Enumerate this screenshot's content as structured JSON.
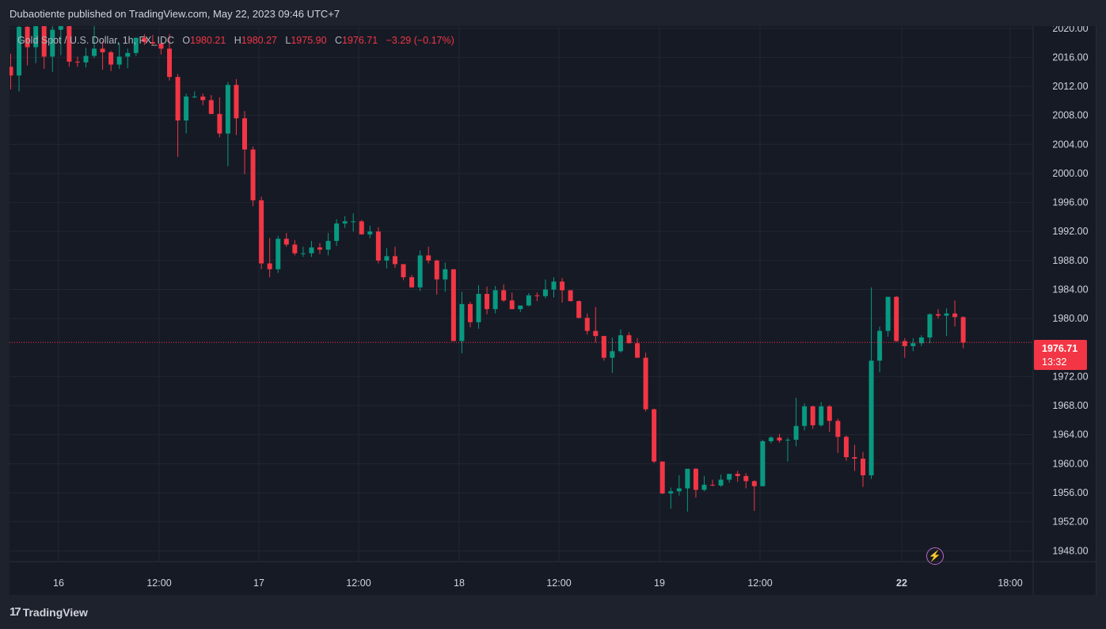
{
  "header": {
    "publish_text": "Dubaotiente published on TradingView.com, May 22, 2023 09:46 UTC+7"
  },
  "legend": {
    "symbol": "Gold Spot / U.S. Dollar, 1h, FX_IDC",
    "open_label": "O",
    "open_value": "1980.21",
    "high_label": "H",
    "high_value": "1980.27",
    "low_label": "L",
    "low_value": "1975.90",
    "close_label": "C",
    "close_value": "1976.71",
    "change": "−3.29 (−0.17%)"
  },
  "last_price": {
    "price": "1976.71",
    "countdown": "13:32"
  },
  "footer": {
    "brand": "TradingView",
    "logo_icon": "tradingview-logo-icon"
  },
  "colors": {
    "up": "#089981",
    "down": "#f23645",
    "background": "#161a25",
    "grid": "#232632",
    "axis_text": "#d1d4dc",
    "alert_icon": "#ba68c8"
  },
  "chart_data": {
    "type": "candlestick",
    "symbol": "XAUUSD",
    "timeframe": "1h",
    "x_ticks": [
      "16",
      "12:00",
      "17",
      "12:00",
      "18",
      "12:00",
      "19",
      "12:00",
      "22",
      "18:00"
    ],
    "y_ticks": [
      "2020.00",
      "2016.00",
      "2012.00",
      "2008.00",
      "2004.00",
      "2000.00",
      "1996.00",
      "1992.00",
      "1988.00",
      "1984.00",
      "1980.00",
      "1972.00",
      "1968.00",
      "1964.00",
      "1960.00",
      "1956.00",
      "1952.00",
      "1948.00"
    ],
    "ylim": [
      1946.5,
      2020.3
    ],
    "grid": true,
    "last_price_line": 1976.71,
    "candles": [
      [
        2014.7,
        2016.5,
        2011.6,
        2013.5
      ],
      [
        2013.5,
        2021.4,
        2011.3,
        2020.2
      ],
      [
        2020.2,
        2022.4,
        2014.9,
        2017.4
      ],
      [
        2017.4,
        2021.8,
        2015.2,
        2020.8
      ],
      [
        2020.8,
        2022.6,
        2014.4,
        2016.1
      ],
      [
        2016.1,
        2024.0,
        2014.0,
        2019.8
      ],
      [
        2019.8,
        2023.8,
        2016.3,
        2020.6
      ],
      [
        2020.6,
        2021.7,
        2014.7,
        2015.4
      ],
      [
        2015.4,
        2016.1,
        2014.7,
        2015.3
      ],
      [
        2015.3,
        2017.3,
        2014.6,
        2016.2
      ],
      [
        2016.2,
        2022.6,
        2015.9,
        2017.2
      ],
      [
        2017.2,
        2018.2,
        2014.3,
        2016.7
      ],
      [
        2016.7,
        2016.9,
        2014.1,
        2015.0
      ],
      [
        2015.0,
        2018.0,
        2014.4,
        2016.1
      ],
      [
        2016.1,
        2017.2,
        2014.5,
        2016.6
      ],
      [
        2016.6,
        2018.6,
        2016.2,
        2018.7
      ],
      [
        2018.7,
        2019.2,
        2017.7,
        2018.1
      ],
      [
        2018.1,
        2019.1,
        2017.6,
        2017.9
      ],
      [
        2017.9,
        2018.5,
        2016.4,
        2017.2
      ],
      [
        2017.2,
        2019.2,
        2012.8,
        2013.3
      ],
      [
        2013.3,
        2013.7,
        2002.3,
        2007.3
      ],
      [
        2007.3,
        2011.0,
        2005.5,
        2010.6
      ],
      [
        2010.6,
        2011.3,
        2010.4,
        2010.6
      ],
      [
        2010.6,
        2011.0,
        2009.4,
        2010.1
      ],
      [
        2010.1,
        2010.8,
        2008.2,
        2008.2
      ],
      [
        2008.2,
        2010.5,
        2005.0,
        2005.5
      ],
      [
        2005.5,
        2012.6,
        2001.0,
        2012.2
      ],
      [
        2012.2,
        2013.0,
        2005.3,
        2007.6
      ],
      [
        2007.6,
        2008.6,
        1999.9,
        2003.3
      ],
      [
        2003.3,
        2003.7,
        1995.5,
        1996.3
      ],
      [
        1996.3,
        1996.8,
        1986.8,
        1987.6
      ],
      [
        1987.6,
        1991.1,
        1985.7,
        1986.8
      ],
      [
        1986.8,
        1991.4,
        1986.3,
        1991.0
      ],
      [
        1991.0,
        1991.8,
        1989.9,
        1990.2
      ],
      [
        1990.2,
        1990.8,
        1988.7,
        1989.0
      ],
      [
        1989.0,
        1989.9,
        1988.5,
        1989.0
      ],
      [
        1989.0,
        1990.7,
        1988.5,
        1989.8
      ],
      [
        1989.8,
        1990.4,
        1988.9,
        1989.5
      ],
      [
        1989.5,
        1991.8,
        1988.7,
        1990.7
      ],
      [
        1990.7,
        1993.7,
        1990.0,
        1993.1
      ],
      [
        1993.1,
        1994.1,
        1992.5,
        1993.4
      ],
      [
        1993.4,
        1994.5,
        1992.0,
        1993.4
      ],
      [
        1993.4,
        1993.6,
        1991.6,
        1991.6
      ],
      [
        1991.6,
        1992.8,
        1991.1,
        1992.0
      ],
      [
        1992.0,
        1992.6,
        1987.6,
        1988.0
      ],
      [
        1988.0,
        1989.7,
        1986.9,
        1988.6
      ],
      [
        1988.6,
        1989.9,
        1987.0,
        1987.5
      ],
      [
        1987.5,
        1987.5,
        1985.3,
        1985.7
      ],
      [
        1985.7,
        1986.0,
        1984.3,
        1984.3
      ],
      [
        1984.3,
        1989.4,
        1983.8,
        1988.7
      ],
      [
        1988.7,
        1989.9,
        1987.6,
        1988.0
      ],
      [
        1988.0,
        1988.1,
        1983.3,
        1985.4
      ],
      [
        1985.4,
        1987.7,
        1983.7,
        1986.8
      ],
      [
        1986.8,
        1986.8,
        1977.0,
        1976.9
      ],
      [
        1976.9,
        1983.7,
        1975.2,
        1982.0
      ],
      [
        1982.0,
        1982.3,
        1978.8,
        1979.5
      ],
      [
        1979.5,
        1984.6,
        1978.6,
        1983.4
      ],
      [
        1983.4,
        1984.4,
        1980.6,
        1981.3
      ],
      [
        1981.3,
        1984.5,
        1980.7,
        1983.9
      ],
      [
        1983.9,
        1984.7,
        1982.3,
        1982.5
      ],
      [
        1982.5,
        1983.6,
        1981.3,
        1981.3
      ],
      [
        1981.3,
        1981.5,
        1980.9,
        1981.8
      ],
      [
        1981.8,
        1983.5,
        1981.7,
        1983.2
      ],
      [
        1983.2,
        1983.6,
        1982.4,
        1983.1
      ],
      [
        1983.1,
        1985.4,
        1982.8,
        1984.0
      ],
      [
        1984.0,
        1985.7,
        1982.9,
        1985.1
      ],
      [
        1985.1,
        1985.6,
        1982.2,
        1983.9
      ],
      [
        1983.9,
        1983.9,
        1982.4,
        1982.4
      ],
      [
        1982.4,
        1982.5,
        1980.0,
        1980.1
      ],
      [
        1980.1,
        1980.7,
        1977.8,
        1978.3
      ],
      [
        1978.3,
        1981.6,
        1976.7,
        1977.6
      ],
      [
        1977.6,
        1977.6,
        1974.2,
        1974.6
      ],
      [
        1974.6,
        1977.4,
        1972.5,
        1975.5
      ],
      [
        1975.5,
        1978.5,
        1975.3,
        1977.7
      ],
      [
        1977.7,
        1978.1,
        1976.6,
        1976.6
      ],
      [
        1976.6,
        1977.3,
        1974.6,
        1974.6
      ],
      [
        1974.6,
        1975.3,
        1967.2,
        1967.5
      ],
      [
        1967.5,
        1967.6,
        1960.1,
        1960.3
      ],
      [
        1960.3,
        1960.3,
        1955.8,
        1955.9
      ],
      [
        1955.9,
        1956.7,
        1953.8,
        1956.2
      ],
      [
        1956.2,
        1958.4,
        1955.6,
        1956.6
      ],
      [
        1956.6,
        1959.0,
        1953.4,
        1959.3
      ],
      [
        1959.3,
        1959.4,
        1955.3,
        1956.4
      ],
      [
        1956.4,
        1958.3,
        1956.2,
        1957.1
      ],
      [
        1957.1,
        1957.8,
        1956.9,
        1957.0
      ],
      [
        1957.0,
        1958.5,
        1956.8,
        1957.8
      ],
      [
        1957.8,
        1958.5,
        1957.4,
        1958.6
      ],
      [
        1958.6,
        1959.0,
        1957.5,
        1958.3
      ],
      [
        1958.3,
        1958.7,
        1956.6,
        1957.6
      ],
      [
        1957.6,
        1957.7,
        1953.5,
        1956.9
      ],
      [
        1956.9,
        1963.3,
        1956.9,
        1963.1
      ],
      [
        1963.1,
        1963.8,
        1962.8,
        1963.6
      ],
      [
        1963.6,
        1964.1,
        1962.9,
        1963.2
      ],
      [
        1963.2,
        1963.6,
        1960.3,
        1963.3
      ],
      [
        1963.3,
        1969.1,
        1962.4,
        1965.2
      ],
      [
        1965.2,
        1968.3,
        1964.6,
        1967.9
      ],
      [
        1967.9,
        1968.0,
        1964.8,
        1965.3
      ],
      [
        1965.3,
        1968.5,
        1965.1,
        1967.9
      ],
      [
        1967.9,
        1968.1,
        1964.4,
        1965.9
      ],
      [
        1965.9,
        1966.2,
        1961.5,
        1963.7
      ],
      [
        1963.7,
        1963.9,
        1960.4,
        1960.9
      ],
      [
        1960.9,
        1962.6,
        1959.0,
        1960.7
      ],
      [
        1960.7,
        1961.6,
        1956.8,
        1958.4
      ],
      [
        1958.4,
        1984.3,
        1957.9,
        1974.2
      ],
      [
        1974.2,
        1978.9,
        1972.6,
        1978.3
      ],
      [
        1978.3,
        1983.0,
        1977.5,
        1983.0
      ],
      [
        1983.0,
        1983.1,
        1976.8,
        1976.9
      ],
      [
        1976.9,
        1977.3,
        1974.6,
        1976.2
      ],
      [
        1976.2,
        1977.3,
        1975.5,
        1976.6
      ],
      [
        1976.6,
        1977.7,
        1976.2,
        1977.4
      ],
      [
        1977.4,
        1980.7,
        1976.6,
        1980.6
      ],
      [
        1980.6,
        1981.3,
        1980.0,
        1980.4
      ],
      [
        1980.4,
        1981.4,
        1977.6,
        1980.7
      ],
      [
        1980.7,
        1982.5,
        1978.9,
        1980.2
      ],
      [
        1980.2,
        1980.3,
        1975.9,
        1976.7
      ]
    ]
  }
}
